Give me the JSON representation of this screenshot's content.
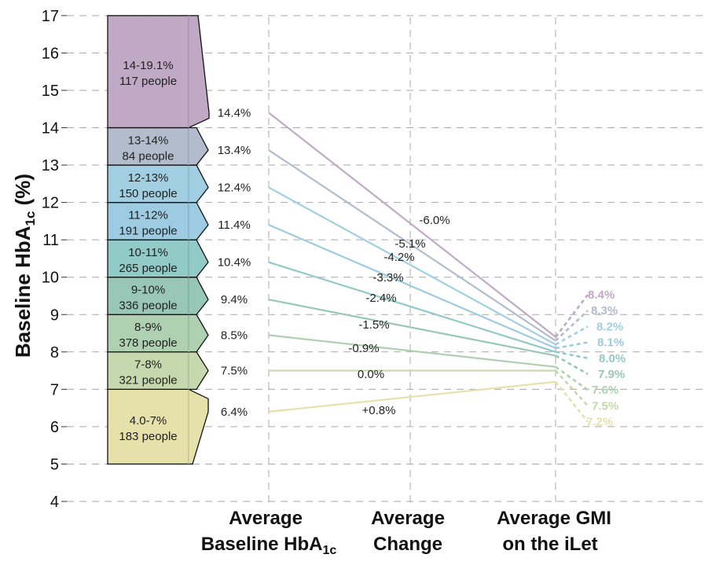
{
  "chart_data": {
    "type": "line",
    "ylabel_main": "Baseline HbA",
    "ylabel_sub": "1c",
    "ylabel_suffix": " (%)",
    "ylim": [
      4,
      17
    ],
    "yticks": [
      "4",
      "5",
      "6",
      "7",
      "8",
      "9",
      "10",
      "11",
      "12",
      "13",
      "14",
      "15",
      "16",
      "17"
    ],
    "grid": true,
    "columns": [
      {
        "line1": "Average",
        "line2_main": "Baseline HbA",
        "line2_sub": "1c"
      },
      {
        "line1": "Average",
        "line2_main": "Change",
        "line2_sub": ""
      },
      {
        "line1": "Average GMI",
        "line2_main": "on the iLet",
        "line2_sub": ""
      }
    ],
    "groups": [
      {
        "range": "4.0-7%",
        "people": "183 people",
        "lo": 5,
        "hi": 7,
        "baseline": 6.4,
        "baseline_label": "6.4%",
        "change_label": "+0.8%",
        "gmi": 7.2,
        "gmi_label": "7.2%",
        "color": "#e6e0ab"
      },
      {
        "range": "7-8%",
        "people": "321 people",
        "lo": 7,
        "hi": 8,
        "baseline": 7.5,
        "baseline_label": "7.5%",
        "change_label": "0.0%",
        "gmi": 7.5,
        "gmi_label": "7.5%",
        "color": "#c6d8ad"
      },
      {
        "range": "8-9%",
        "people": "378 people",
        "lo": 8,
        "hi": 9,
        "baseline": 8.45,
        "baseline_label": "8.5%",
        "change_label": "-0.9%",
        "gmi": 7.6,
        "gmi_label": "7.6%",
        "color": "#afd0b1"
      },
      {
        "range": "9-10%",
        "people": "336 people",
        "lo": 9,
        "hi": 10,
        "baseline": 9.4,
        "baseline_label": "9.4%",
        "change_label": "-1.5%",
        "gmi": 7.9,
        "gmi_label": "7.9%",
        "color": "#98c7b7"
      },
      {
        "range": "10-11%",
        "people": "265 people",
        "lo": 10,
        "hi": 11,
        "baseline": 10.4,
        "baseline_label": "10.4%",
        "change_label": "-2.4%",
        "gmi": 8.0,
        "gmi_label": "8.0%",
        "color": "#92cac8"
      },
      {
        "range": "11-12%",
        "people": "191 people",
        "lo": 11,
        "hi": 12,
        "baseline": 11.4,
        "baseline_label": "11.4%",
        "change_label": "-3.3%",
        "gmi": 8.1,
        "gmi_label": "8.1%",
        "color": "#9ccbe2"
      },
      {
        "range": "12-13%",
        "people": "150 people",
        "lo": 12,
        "hi": 13,
        "baseline": 12.4,
        "baseline_label": "12.4%",
        "change_label": "-4.2%",
        "gmi": 8.2,
        "gmi_label": "8.2%",
        "color": "#a1cfe1"
      },
      {
        "range": "13-14%",
        "people": "84 people",
        "lo": 13,
        "hi": 14,
        "baseline": 13.4,
        "baseline_label": "13.4%",
        "change_label": "-5.1%",
        "gmi": 8.3,
        "gmi_label": "8.3%",
        "color": "#b3bccd"
      },
      {
        "range": "14-19.1%",
        "people": "117 people",
        "lo": 14,
        "hi": 17,
        "baseline": 14.4,
        "baseline_label": "14.4%",
        "change_label": "-6.0%",
        "gmi": 8.4,
        "gmi_label": "8.4%",
        "color": "#c0a9c4"
      }
    ]
  }
}
